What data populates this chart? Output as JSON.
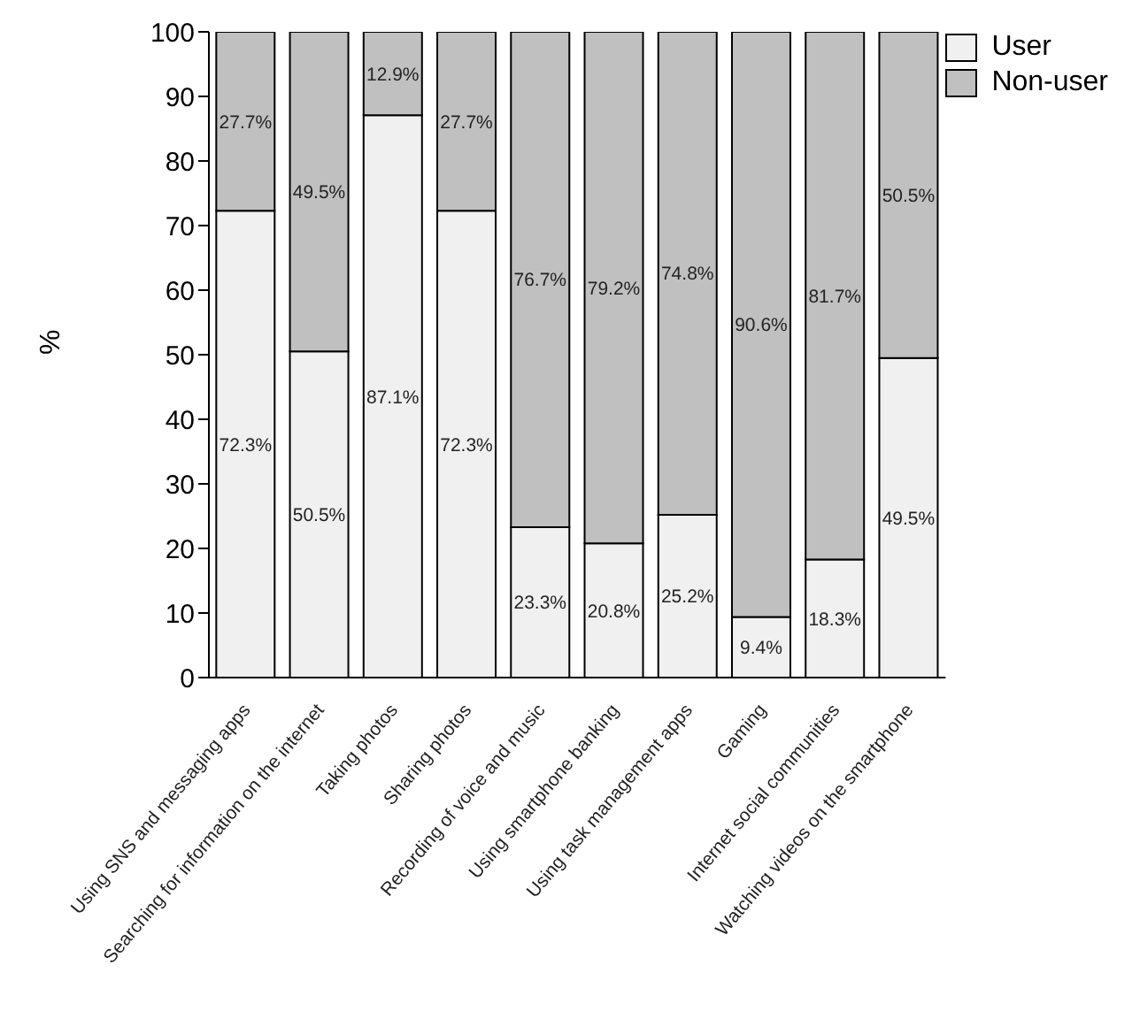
{
  "chart_data": {
    "type": "bar",
    "stacked": true,
    "ylabel": "%",
    "categories": [
      "Using SNS and messaging apps",
      "Searching for information on the internet",
      "Taking photos",
      "Sharing photos",
      "Recording of voice and music",
      "Using smartphone banking",
      "Using task management apps",
      "Gaming",
      "Internet social communities",
      "Watching videos on the smartphone"
    ],
    "series": [
      {
        "name": "User",
        "color": "#f0f0f0",
        "values": [
          72.3,
          50.5,
          87.1,
          72.3,
          23.3,
          20.8,
          25.2,
          9.4,
          18.3,
          49.5
        ],
        "value_labels": [
          "72.3%",
          "50.5%",
          "87.1%",
          "72.3%",
          "23.3%",
          "20.8%",
          "25.2%",
          "9.4%",
          "18.3%",
          "49.5%"
        ]
      },
      {
        "name": "Non-user",
        "color": "#c0c0c0",
        "values": [
          27.7,
          49.5,
          12.9,
          27.7,
          76.7,
          79.2,
          74.8,
          90.6,
          81.7,
          50.5
        ],
        "value_labels": [
          "27.7%",
          "49.5%",
          "12.9%",
          "27.7%",
          "76.7%",
          "79.2%",
          "74.8%",
          "90.6%",
          "81.7%",
          "50.5%"
        ]
      }
    ],
    "ylim": [
      0,
      100
    ],
    "yticks": [
      0,
      10,
      20,
      30,
      40,
      50,
      60,
      70,
      80,
      90,
      100
    ],
    "legend": "top right",
    "grid": false
  }
}
